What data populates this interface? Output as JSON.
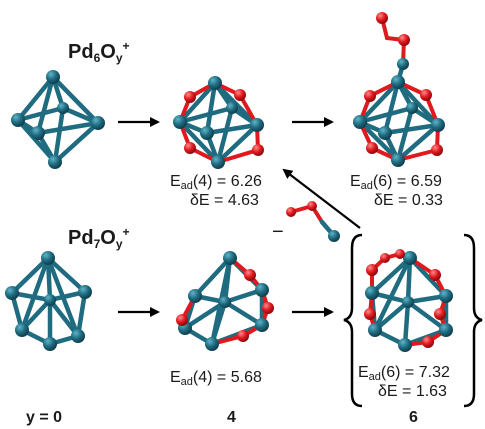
{
  "titles": {
    "pd6": {
      "base": "Pd",
      "n": "6",
      "o": "O",
      "y": "y",
      "charge": "+"
    },
    "pd7": {
      "base": "Pd",
      "n": "7",
      "o": "O",
      "y": "y",
      "charge": "+"
    }
  },
  "labels": {
    "pd6_y4_ead": {
      "E": "E",
      "sub": "ad",
      "arg": "(4)",
      "eq": " = 6.26"
    },
    "pd6_y4_de": "δE = 4.63",
    "pd6_y6_ead": {
      "E": "E",
      "sub": "ad",
      "arg": "(6)",
      "eq": " = 6.59"
    },
    "pd6_y6_de": "δE = 0.33",
    "pd7_y4_ead": {
      "E": "E",
      "sub": "ad",
      "arg": "(4)",
      "eq": " = 5.68"
    },
    "pd7_y6_ead": {
      "E": "E",
      "sub": "ad",
      "arg": "(6)",
      "eq": " = 7.32"
    },
    "pd7_y6_de": "δE = 1.63",
    "minus": "−"
  },
  "columns": {
    "y0": "y = 0",
    "y4": "4",
    "y6": "6"
  },
  "colors": {
    "pd": "#1f6b80",
    "pd_light": "#4fa3b8",
    "oxygen": "#e0191e",
    "arrow": "#000000"
  }
}
